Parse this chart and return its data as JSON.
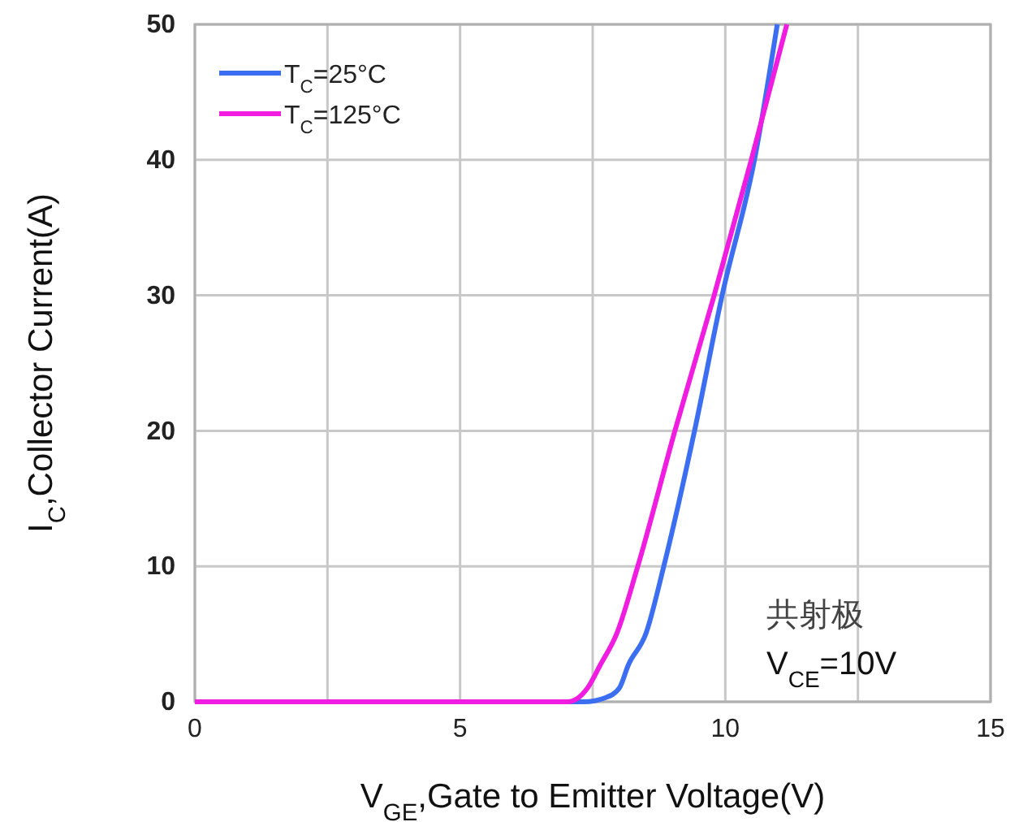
{
  "chart_data": {
    "type": "line",
    "xlabel": "V$_{GE}$,Gate to Emitter Voltage(V)",
    "ylabel": "I$_{C}$,Collector Current(A)",
    "xlim": [
      0,
      15
    ],
    "ylim": [
      0,
      50
    ],
    "xticks": [
      0,
      {
        "value": 2.5,
        "label": null
      },
      5,
      {
        "value": 7.5,
        "label": null
      },
      10,
      {
        "value": 12.5,
        "label": null
      },
      15
    ],
    "yticks": [
      0,
      10,
      20,
      30,
      40,
      50
    ],
    "grid": true,
    "legend": "top left",
    "marker": "none",
    "line_style": "solid",
    "annotations": [
      "共射极",
      "V$_{CE}$=10V"
    ],
    "series": [
      {
        "name": "T$_{C}$=25°C",
        "color": "#3b6ef0",
        "x": [
          0,
          7.34,
          7.74,
          8.0,
          8.17,
          8.5,
          8.84,
          9.42,
          9.94,
          10.55,
          10.98
        ],
        "values": [
          0,
          0,
          0.3,
          1,
          2.7,
          5,
          10,
          20,
          30,
          40,
          50
        ]
      },
      {
        "name": "T$_{C}$=125°C",
        "color": "#f01ce0",
        "x": [
          0,
          7.03,
          7.4,
          7.64,
          7.95,
          8.35,
          9.05,
          9.79,
          10.49,
          11.16
        ],
        "values": [
          0,
          0,
          1,
          2.7,
          5,
          10,
          20,
          30,
          40,
          50
        ]
      }
    ]
  }
}
